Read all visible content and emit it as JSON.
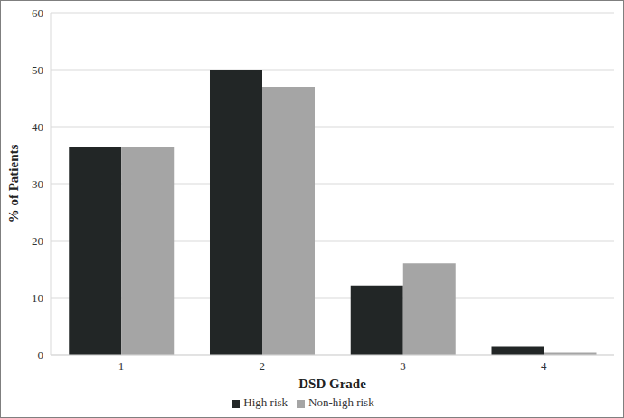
{
  "chart_data": {
    "type": "bar",
    "x_label": "DSD Grade",
    "y_label": "% of Patients",
    "categories": [
      "1",
      "2",
      "3",
      "4"
    ],
    "series": [
      {
        "name": "High risk",
        "color": "#222626",
        "values": [
          36.4,
          50,
          12.1,
          1.5
        ]
      },
      {
        "name": "Non-high risk",
        "color": "#a5a5a5",
        "values": [
          36.5,
          47,
          16,
          0.4
        ]
      }
    ],
    "ylim": [
      0,
      60
    ],
    "yticks": [
      0,
      10,
      20,
      30,
      40,
      50,
      60
    ],
    "grid": true,
    "legend": "bottom"
  }
}
